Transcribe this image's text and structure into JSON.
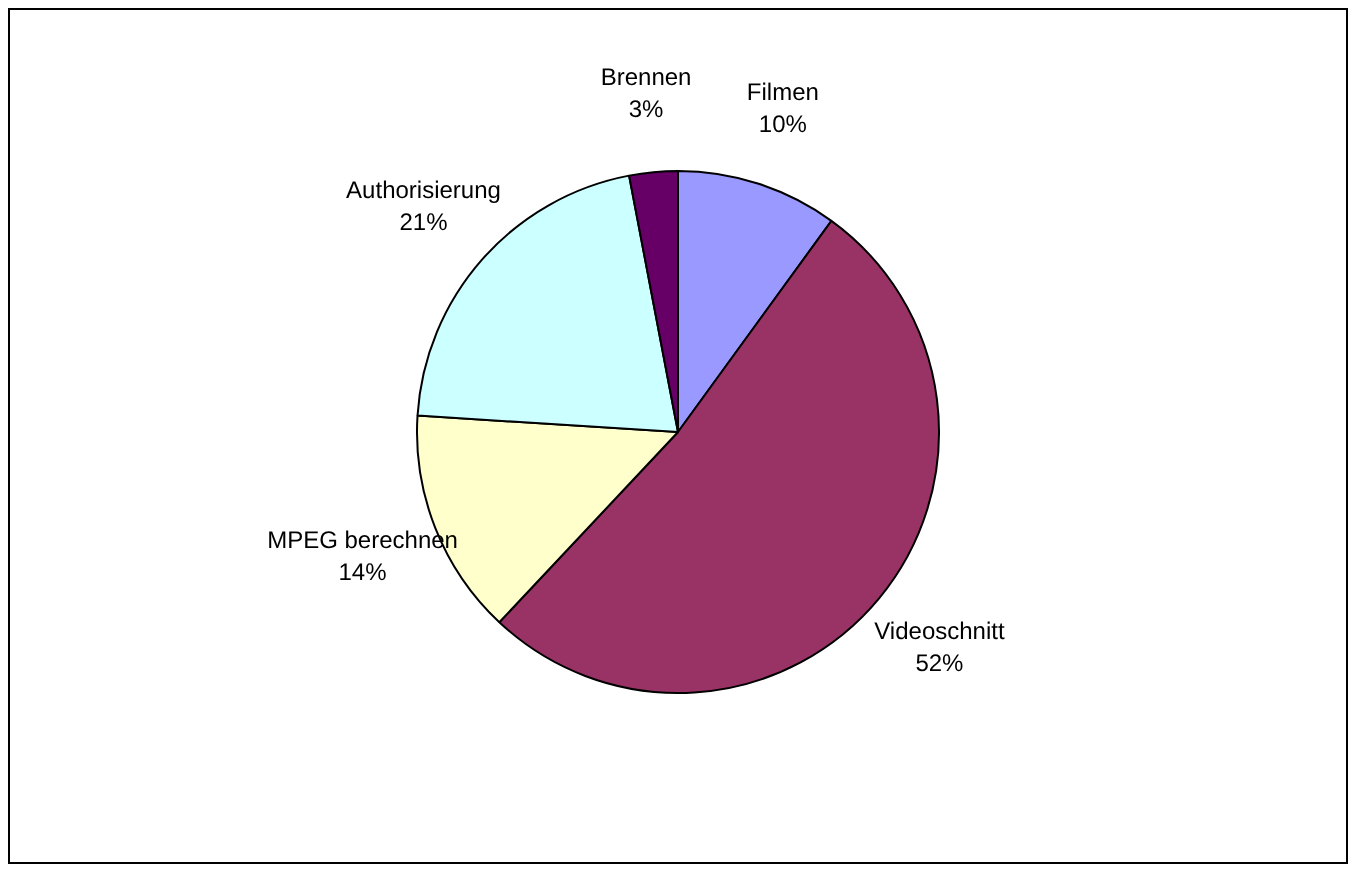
{
  "chart_data": {
    "type": "pie",
    "categories": [
      "Filmen",
      "Videoschnitt",
      "MPEG berechnen",
      "Authorisierung",
      "Brennen"
    ],
    "values": [
      10,
      52,
      14,
      21,
      3
    ],
    "colors": [
      "#9999ff",
      "#993366",
      "#ffffcc",
      "#ccffff",
      "#660066"
    ],
    "value_labels": [
      "10%",
      "52%",
      "14%",
      "21%",
      "3%"
    ],
    "legend": false
  }
}
